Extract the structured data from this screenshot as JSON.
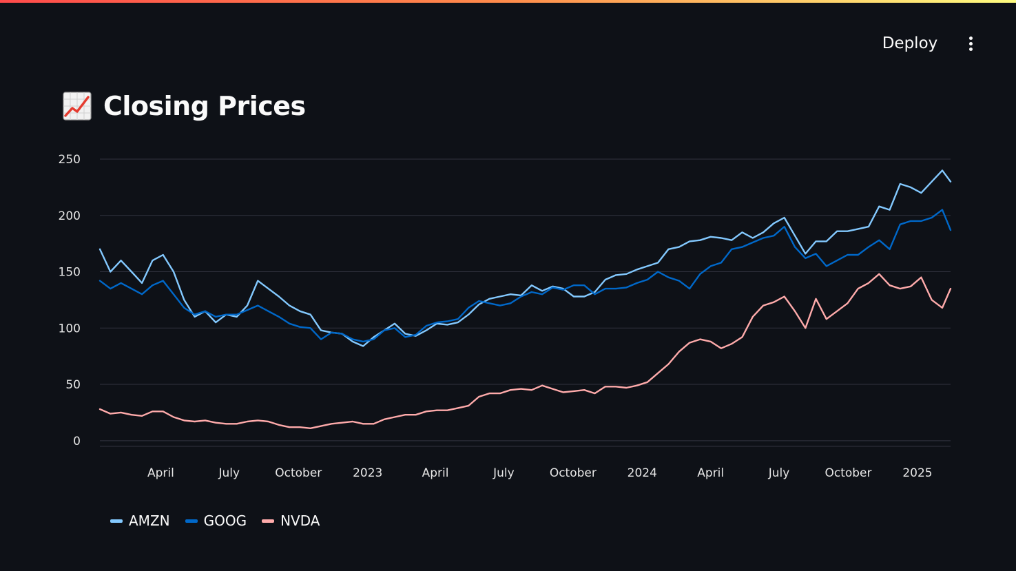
{
  "header": {
    "deploy_label": "Deploy",
    "menu_icon": "kebab-menu-icon"
  },
  "page": {
    "title": "Closing Prices",
    "title_icon": "chart-increasing-icon"
  },
  "chart_data": {
    "type": "line",
    "title": "",
    "xlabel": "",
    "ylabel": "",
    "x_range": [
      "2022-01-10",
      "2025-02-14"
    ],
    "ylim": [
      -5,
      250
    ],
    "y_ticks": [
      0,
      50,
      100,
      150,
      200,
      250
    ],
    "x_ticks": [
      {
        "date": "2022-04-01",
        "label": "April"
      },
      {
        "date": "2022-07-01",
        "label": "July"
      },
      {
        "date": "2022-10-01",
        "label": "October"
      },
      {
        "date": "2023-01-01",
        "label": "2023"
      },
      {
        "date": "2023-04-01",
        "label": "April"
      },
      {
        "date": "2023-07-01",
        "label": "July"
      },
      {
        "date": "2023-10-01",
        "label": "October"
      },
      {
        "date": "2024-01-01",
        "label": "2024"
      },
      {
        "date": "2024-04-01",
        "label": "April"
      },
      {
        "date": "2024-07-01",
        "label": "July"
      },
      {
        "date": "2024-10-01",
        "label": "October"
      },
      {
        "date": "2025-01-01",
        "label": "2025"
      }
    ],
    "grid": "horizontal",
    "legend_position": "bottom-left",
    "series": [
      {
        "name": "AMZN",
        "color": "#83c9ff",
        "points": [
          [
            "2022-01-10",
            170
          ],
          [
            "2022-01-24",
            150
          ],
          [
            "2022-02-07",
            160
          ],
          [
            "2022-02-21",
            150
          ],
          [
            "2022-03-07",
            140
          ],
          [
            "2022-03-21",
            160
          ],
          [
            "2022-04-04",
            165
          ],
          [
            "2022-04-18",
            150
          ],
          [
            "2022-05-02",
            125
          ],
          [
            "2022-05-16",
            110
          ],
          [
            "2022-05-30",
            115
          ],
          [
            "2022-06-13",
            105
          ],
          [
            "2022-06-27",
            112
          ],
          [
            "2022-07-11",
            110
          ],
          [
            "2022-07-25",
            120
          ],
          [
            "2022-08-08",
            142
          ],
          [
            "2022-08-22",
            135
          ],
          [
            "2022-09-05",
            128
          ],
          [
            "2022-09-19",
            120
          ],
          [
            "2022-10-03",
            115
          ],
          [
            "2022-10-17",
            112
          ],
          [
            "2022-10-31",
            98
          ],
          [
            "2022-11-14",
            96
          ],
          [
            "2022-11-28",
            95
          ],
          [
            "2022-12-12",
            88
          ],
          [
            "2022-12-26",
            84
          ],
          [
            "2023-01-09",
            92
          ],
          [
            "2023-01-23",
            98
          ],
          [
            "2023-02-06",
            104
          ],
          [
            "2023-02-20",
            95
          ],
          [
            "2023-03-06",
            93
          ],
          [
            "2023-03-20",
            98
          ],
          [
            "2023-04-03",
            104
          ],
          [
            "2023-04-17",
            103
          ],
          [
            "2023-05-01",
            105
          ],
          [
            "2023-05-15",
            112
          ],
          [
            "2023-05-29",
            121
          ],
          [
            "2023-06-12",
            126
          ],
          [
            "2023-06-26",
            128
          ],
          [
            "2023-07-10",
            130
          ],
          [
            "2023-07-24",
            129
          ],
          [
            "2023-08-07",
            138
          ],
          [
            "2023-08-21",
            133
          ],
          [
            "2023-09-04",
            137
          ],
          [
            "2023-09-18",
            135
          ],
          [
            "2023-10-02",
            128
          ],
          [
            "2023-10-16",
            128
          ],
          [
            "2023-10-30",
            132
          ],
          [
            "2023-11-13",
            143
          ],
          [
            "2023-11-27",
            147
          ],
          [
            "2023-12-11",
            148
          ],
          [
            "2023-12-25",
            152
          ],
          [
            "2024-01-08",
            155
          ],
          [
            "2024-01-22",
            158
          ],
          [
            "2024-02-05",
            170
          ],
          [
            "2024-02-19",
            172
          ],
          [
            "2024-03-04",
            177
          ],
          [
            "2024-03-18",
            178
          ],
          [
            "2024-04-01",
            181
          ],
          [
            "2024-04-15",
            180
          ],
          [
            "2024-04-29",
            178
          ],
          [
            "2024-05-13",
            185
          ],
          [
            "2024-05-27",
            180
          ],
          [
            "2024-06-10",
            185
          ],
          [
            "2024-06-24",
            193
          ],
          [
            "2024-07-08",
            198
          ],
          [
            "2024-07-22",
            182
          ],
          [
            "2024-08-05",
            166
          ],
          [
            "2024-08-19",
            177
          ],
          [
            "2024-09-02",
            177
          ],
          [
            "2024-09-16",
            186
          ],
          [
            "2024-09-30",
            186
          ],
          [
            "2024-10-14",
            188
          ],
          [
            "2024-10-28",
            190
          ],
          [
            "2024-11-11",
            208
          ],
          [
            "2024-11-25",
            205
          ],
          [
            "2024-12-09",
            228
          ],
          [
            "2024-12-23",
            225
          ],
          [
            "2025-01-06",
            220
          ],
          [
            "2025-01-20",
            230
          ],
          [
            "2025-02-03",
            240
          ],
          [
            "2025-02-14",
            230
          ]
        ]
      },
      {
        "name": "GOOG",
        "color": "#0068c9",
        "points": [
          [
            "2022-01-10",
            142
          ],
          [
            "2022-01-24",
            135
          ],
          [
            "2022-02-07",
            140
          ],
          [
            "2022-02-21",
            135
          ],
          [
            "2022-03-07",
            130
          ],
          [
            "2022-03-21",
            138
          ],
          [
            "2022-04-04",
            142
          ],
          [
            "2022-04-18",
            130
          ],
          [
            "2022-05-02",
            118
          ],
          [
            "2022-05-16",
            112
          ],
          [
            "2022-05-30",
            115
          ],
          [
            "2022-06-13",
            110
          ],
          [
            "2022-06-27",
            112
          ],
          [
            "2022-07-11",
            112
          ],
          [
            "2022-07-25",
            116
          ],
          [
            "2022-08-08",
            120
          ],
          [
            "2022-08-22",
            115
          ],
          [
            "2022-09-05",
            110
          ],
          [
            "2022-09-19",
            104
          ],
          [
            "2022-10-03",
            101
          ],
          [
            "2022-10-17",
            100
          ],
          [
            "2022-10-31",
            90
          ],
          [
            "2022-11-14",
            96
          ],
          [
            "2022-11-28",
            95
          ],
          [
            "2022-12-12",
            90
          ],
          [
            "2022-12-26",
            88
          ],
          [
            "2023-01-09",
            90
          ],
          [
            "2023-01-23",
            98
          ],
          [
            "2023-02-06",
            100
          ],
          [
            "2023-02-20",
            92
          ],
          [
            "2023-03-06",
            94
          ],
          [
            "2023-03-20",
            102
          ],
          [
            "2023-04-03",
            105
          ],
          [
            "2023-04-17",
            106
          ],
          [
            "2023-05-01",
            108
          ],
          [
            "2023-05-15",
            118
          ],
          [
            "2023-05-29",
            124
          ],
          [
            "2023-06-12",
            122
          ],
          [
            "2023-06-26",
            120
          ],
          [
            "2023-07-10",
            122
          ],
          [
            "2023-07-24",
            128
          ],
          [
            "2023-08-07",
            132
          ],
          [
            "2023-08-21",
            130
          ],
          [
            "2023-09-04",
            136
          ],
          [
            "2023-09-18",
            134
          ],
          [
            "2023-10-02",
            138
          ],
          [
            "2023-10-16",
            138
          ],
          [
            "2023-10-30",
            130
          ],
          [
            "2023-11-13",
            135
          ],
          [
            "2023-11-27",
            135
          ],
          [
            "2023-12-11",
            136
          ],
          [
            "2023-12-25",
            140
          ],
          [
            "2024-01-08",
            143
          ],
          [
            "2024-01-22",
            150
          ],
          [
            "2024-02-05",
            145
          ],
          [
            "2024-02-19",
            142
          ],
          [
            "2024-03-04",
            135
          ],
          [
            "2024-03-18",
            148
          ],
          [
            "2024-04-01",
            155
          ],
          [
            "2024-04-15",
            158
          ],
          [
            "2024-04-29",
            170
          ],
          [
            "2024-05-13",
            172
          ],
          [
            "2024-05-27",
            176
          ],
          [
            "2024-06-10",
            180
          ],
          [
            "2024-06-24",
            182
          ],
          [
            "2024-07-08",
            190
          ],
          [
            "2024-07-22",
            172
          ],
          [
            "2024-08-05",
            162
          ],
          [
            "2024-08-19",
            166
          ],
          [
            "2024-09-02",
            155
          ],
          [
            "2024-09-16",
            160
          ],
          [
            "2024-09-30",
            165
          ],
          [
            "2024-10-14",
            165
          ],
          [
            "2024-10-28",
            172
          ],
          [
            "2024-11-11",
            178
          ],
          [
            "2024-11-25",
            170
          ],
          [
            "2024-12-09",
            192
          ],
          [
            "2024-12-23",
            195
          ],
          [
            "2025-01-06",
            195
          ],
          [
            "2025-01-20",
            198
          ],
          [
            "2025-02-03",
            205
          ],
          [
            "2025-02-14",
            187
          ]
        ]
      },
      {
        "name": "NVDA",
        "color": "#ffabab",
        "points": [
          [
            "2022-01-10",
            28
          ],
          [
            "2022-01-24",
            24
          ],
          [
            "2022-02-07",
            25
          ],
          [
            "2022-02-21",
            23
          ],
          [
            "2022-03-07",
            22
          ],
          [
            "2022-03-21",
            26
          ],
          [
            "2022-04-04",
            26
          ],
          [
            "2022-04-18",
            21
          ],
          [
            "2022-05-02",
            18
          ],
          [
            "2022-05-16",
            17
          ],
          [
            "2022-05-30",
            18
          ],
          [
            "2022-06-13",
            16
          ],
          [
            "2022-06-27",
            15
          ],
          [
            "2022-07-11",
            15
          ],
          [
            "2022-07-25",
            17
          ],
          [
            "2022-08-08",
            18
          ],
          [
            "2022-08-22",
            17
          ],
          [
            "2022-09-05",
            14
          ],
          [
            "2022-09-19",
            12
          ],
          [
            "2022-10-03",
            12
          ],
          [
            "2022-10-17",
            11
          ],
          [
            "2022-10-31",
            13
          ],
          [
            "2022-11-14",
            15
          ],
          [
            "2022-11-28",
            16
          ],
          [
            "2022-12-12",
            17
          ],
          [
            "2022-12-26",
            15
          ],
          [
            "2023-01-09",
            15
          ],
          [
            "2023-01-23",
            19
          ],
          [
            "2023-02-06",
            21
          ],
          [
            "2023-02-20",
            23
          ],
          [
            "2023-03-06",
            23
          ],
          [
            "2023-03-20",
            26
          ],
          [
            "2023-04-03",
            27
          ],
          [
            "2023-04-17",
            27
          ],
          [
            "2023-05-01",
            29
          ],
          [
            "2023-05-15",
            31
          ],
          [
            "2023-05-29",
            39
          ],
          [
            "2023-06-12",
            42
          ],
          [
            "2023-06-26",
            42
          ],
          [
            "2023-07-10",
            45
          ],
          [
            "2023-07-24",
            46
          ],
          [
            "2023-08-07",
            45
          ],
          [
            "2023-08-21",
            49
          ],
          [
            "2023-09-04",
            46
          ],
          [
            "2023-09-18",
            43
          ],
          [
            "2023-10-02",
            44
          ],
          [
            "2023-10-16",
            45
          ],
          [
            "2023-10-30",
            42
          ],
          [
            "2023-11-13",
            48
          ],
          [
            "2023-11-27",
            48
          ],
          [
            "2023-12-11",
            47
          ],
          [
            "2023-12-25",
            49
          ],
          [
            "2024-01-08",
            52
          ],
          [
            "2024-01-22",
            60
          ],
          [
            "2024-02-05",
            68
          ],
          [
            "2024-02-19",
            79
          ],
          [
            "2024-03-04",
            87
          ],
          [
            "2024-03-18",
            90
          ],
          [
            "2024-04-01",
            88
          ],
          [
            "2024-04-15",
            82
          ],
          [
            "2024-04-29",
            86
          ],
          [
            "2024-05-13",
            92
          ],
          [
            "2024-05-27",
            110
          ],
          [
            "2024-06-10",
            120
          ],
          [
            "2024-06-24",
            123
          ],
          [
            "2024-07-08",
            128
          ],
          [
            "2024-07-22",
            115
          ],
          [
            "2024-08-05",
            100
          ],
          [
            "2024-08-19",
            126
          ],
          [
            "2024-09-02",
            108
          ],
          [
            "2024-09-16",
            115
          ],
          [
            "2024-09-30",
            122
          ],
          [
            "2024-10-14",
            135
          ],
          [
            "2024-10-28",
            140
          ],
          [
            "2024-11-11",
            148
          ],
          [
            "2024-11-25",
            138
          ],
          [
            "2024-12-09",
            135
          ],
          [
            "2024-12-23",
            137
          ],
          [
            "2025-01-06",
            145
          ],
          [
            "2025-01-20",
            125
          ],
          [
            "2025-02-03",
            118
          ],
          [
            "2025-02-14",
            135
          ]
        ]
      }
    ]
  }
}
